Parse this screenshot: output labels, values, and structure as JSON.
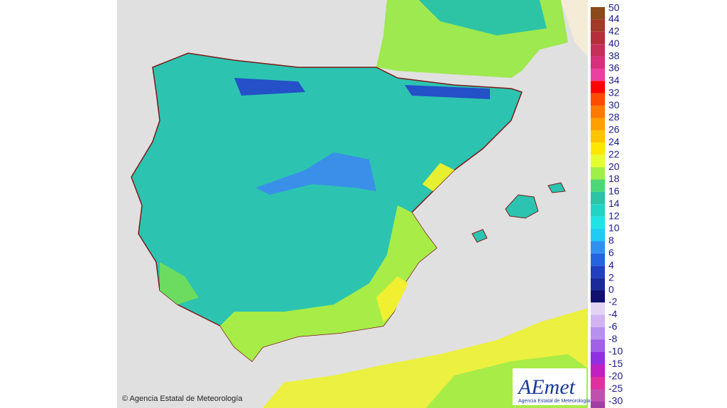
{
  "legend": {
    "entries": [
      {
        "label": 50,
        "color": "#8b4a1c"
      },
      {
        "label": 44,
        "color": "#a23a2a"
      },
      {
        "label": 42,
        "color": "#b3303a"
      },
      {
        "label": 40,
        "color": "#c4305a"
      },
      {
        "label": 38,
        "color": "#d8307a"
      },
      {
        "label": 36,
        "color": "#ec40a0"
      },
      {
        "label": 34,
        "color": "#ff0000"
      },
      {
        "label": 32,
        "color": "#ff4a00"
      },
      {
        "label": 30,
        "color": "#ff7800"
      },
      {
        "label": 28,
        "color": "#ffa000"
      },
      {
        "label": 26,
        "color": "#ffc400"
      },
      {
        "label": 24,
        "color": "#ffe600"
      },
      {
        "label": 22,
        "color": "#e6ff30"
      },
      {
        "label": 20,
        "color": "#9ef048"
      },
      {
        "label": 18,
        "color": "#4cd878"
      },
      {
        "label": 16,
        "color": "#2cc4a4"
      },
      {
        "label": 14,
        "color": "#22d4c4"
      },
      {
        "label": 12,
        "color": "#20e4e4"
      },
      {
        "label": 10,
        "color": "#20ccf4"
      },
      {
        "label": 8,
        "color": "#3090f0"
      },
      {
        "label": 6,
        "color": "#2464e0"
      },
      {
        "label": 4,
        "color": "#2040c0"
      },
      {
        "label": 2,
        "color": "#1a2a9a"
      },
      {
        "label": 0,
        "color": "#101070"
      }
    ],
    "negative_entries": [
      {
        "label": -2,
        "color": "#e4d4f4"
      },
      {
        "label": -4,
        "color": "#d2b4f2"
      },
      {
        "label": -6,
        "color": "#b890f0"
      },
      {
        "label": -8,
        "color": "#a060e8"
      },
      {
        "label": -10,
        "color": "#9030e0"
      },
      {
        "label": -15,
        "color": "#c020c0"
      },
      {
        "label": -20,
        "color": "#e030a0"
      },
      {
        "label": -25,
        "color": "#c050b0"
      },
      {
        "label": -30,
        "color": "#a040a0"
      }
    ]
  },
  "copyright": "© Agencia Estatal de Meteorología",
  "logo": {
    "name": "AEmet",
    "subtitle": "Agencia Estatal de Meteorología"
  }
}
